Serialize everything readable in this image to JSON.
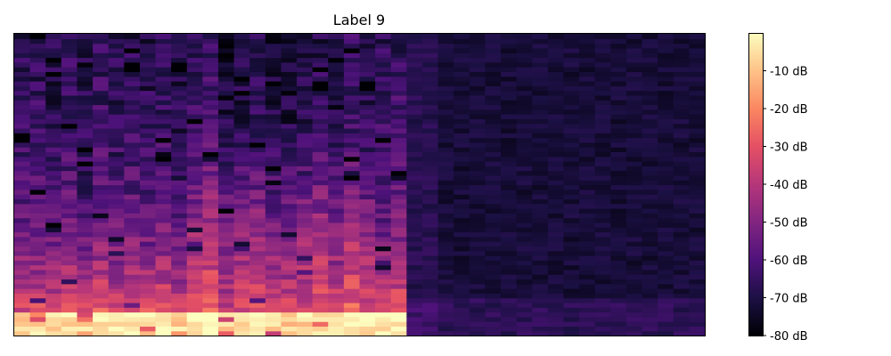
{
  "chart_data": {
    "type": "heatmap",
    "title": "Label 9",
    "xlabel": "",
    "ylabel": "",
    "x_axis_ticks": "none",
    "y_axis_ticks": "none",
    "n_time_frames": 44,
    "n_freq_bins": 64,
    "active_frames": 25,
    "colormap": "magma",
    "colormap_stops": [
      "#000004",
      "#1c1044",
      "#4f127b",
      "#812581",
      "#b5367a",
      "#e55064",
      "#fb8761",
      "#fec287",
      "#fcfdbf"
    ],
    "colorbar": {
      "range": [
        -80,
        0
      ],
      "unit": "dB",
      "ticks": [
        {
          "value": -10,
          "label": "-10 dB"
        },
        {
          "value": -20,
          "label": "-20 dB"
        },
        {
          "value": -30,
          "label": "-30 dB"
        },
        {
          "value": -40,
          "label": "-40 dB"
        },
        {
          "value": -50,
          "label": "-50 dB"
        },
        {
          "value": -60,
          "label": "-60 dB"
        },
        {
          "value": -70,
          "label": "-70 dB"
        },
        {
          "value": -80,
          "label": "-80 dB"
        }
      ]
    }
  }
}
